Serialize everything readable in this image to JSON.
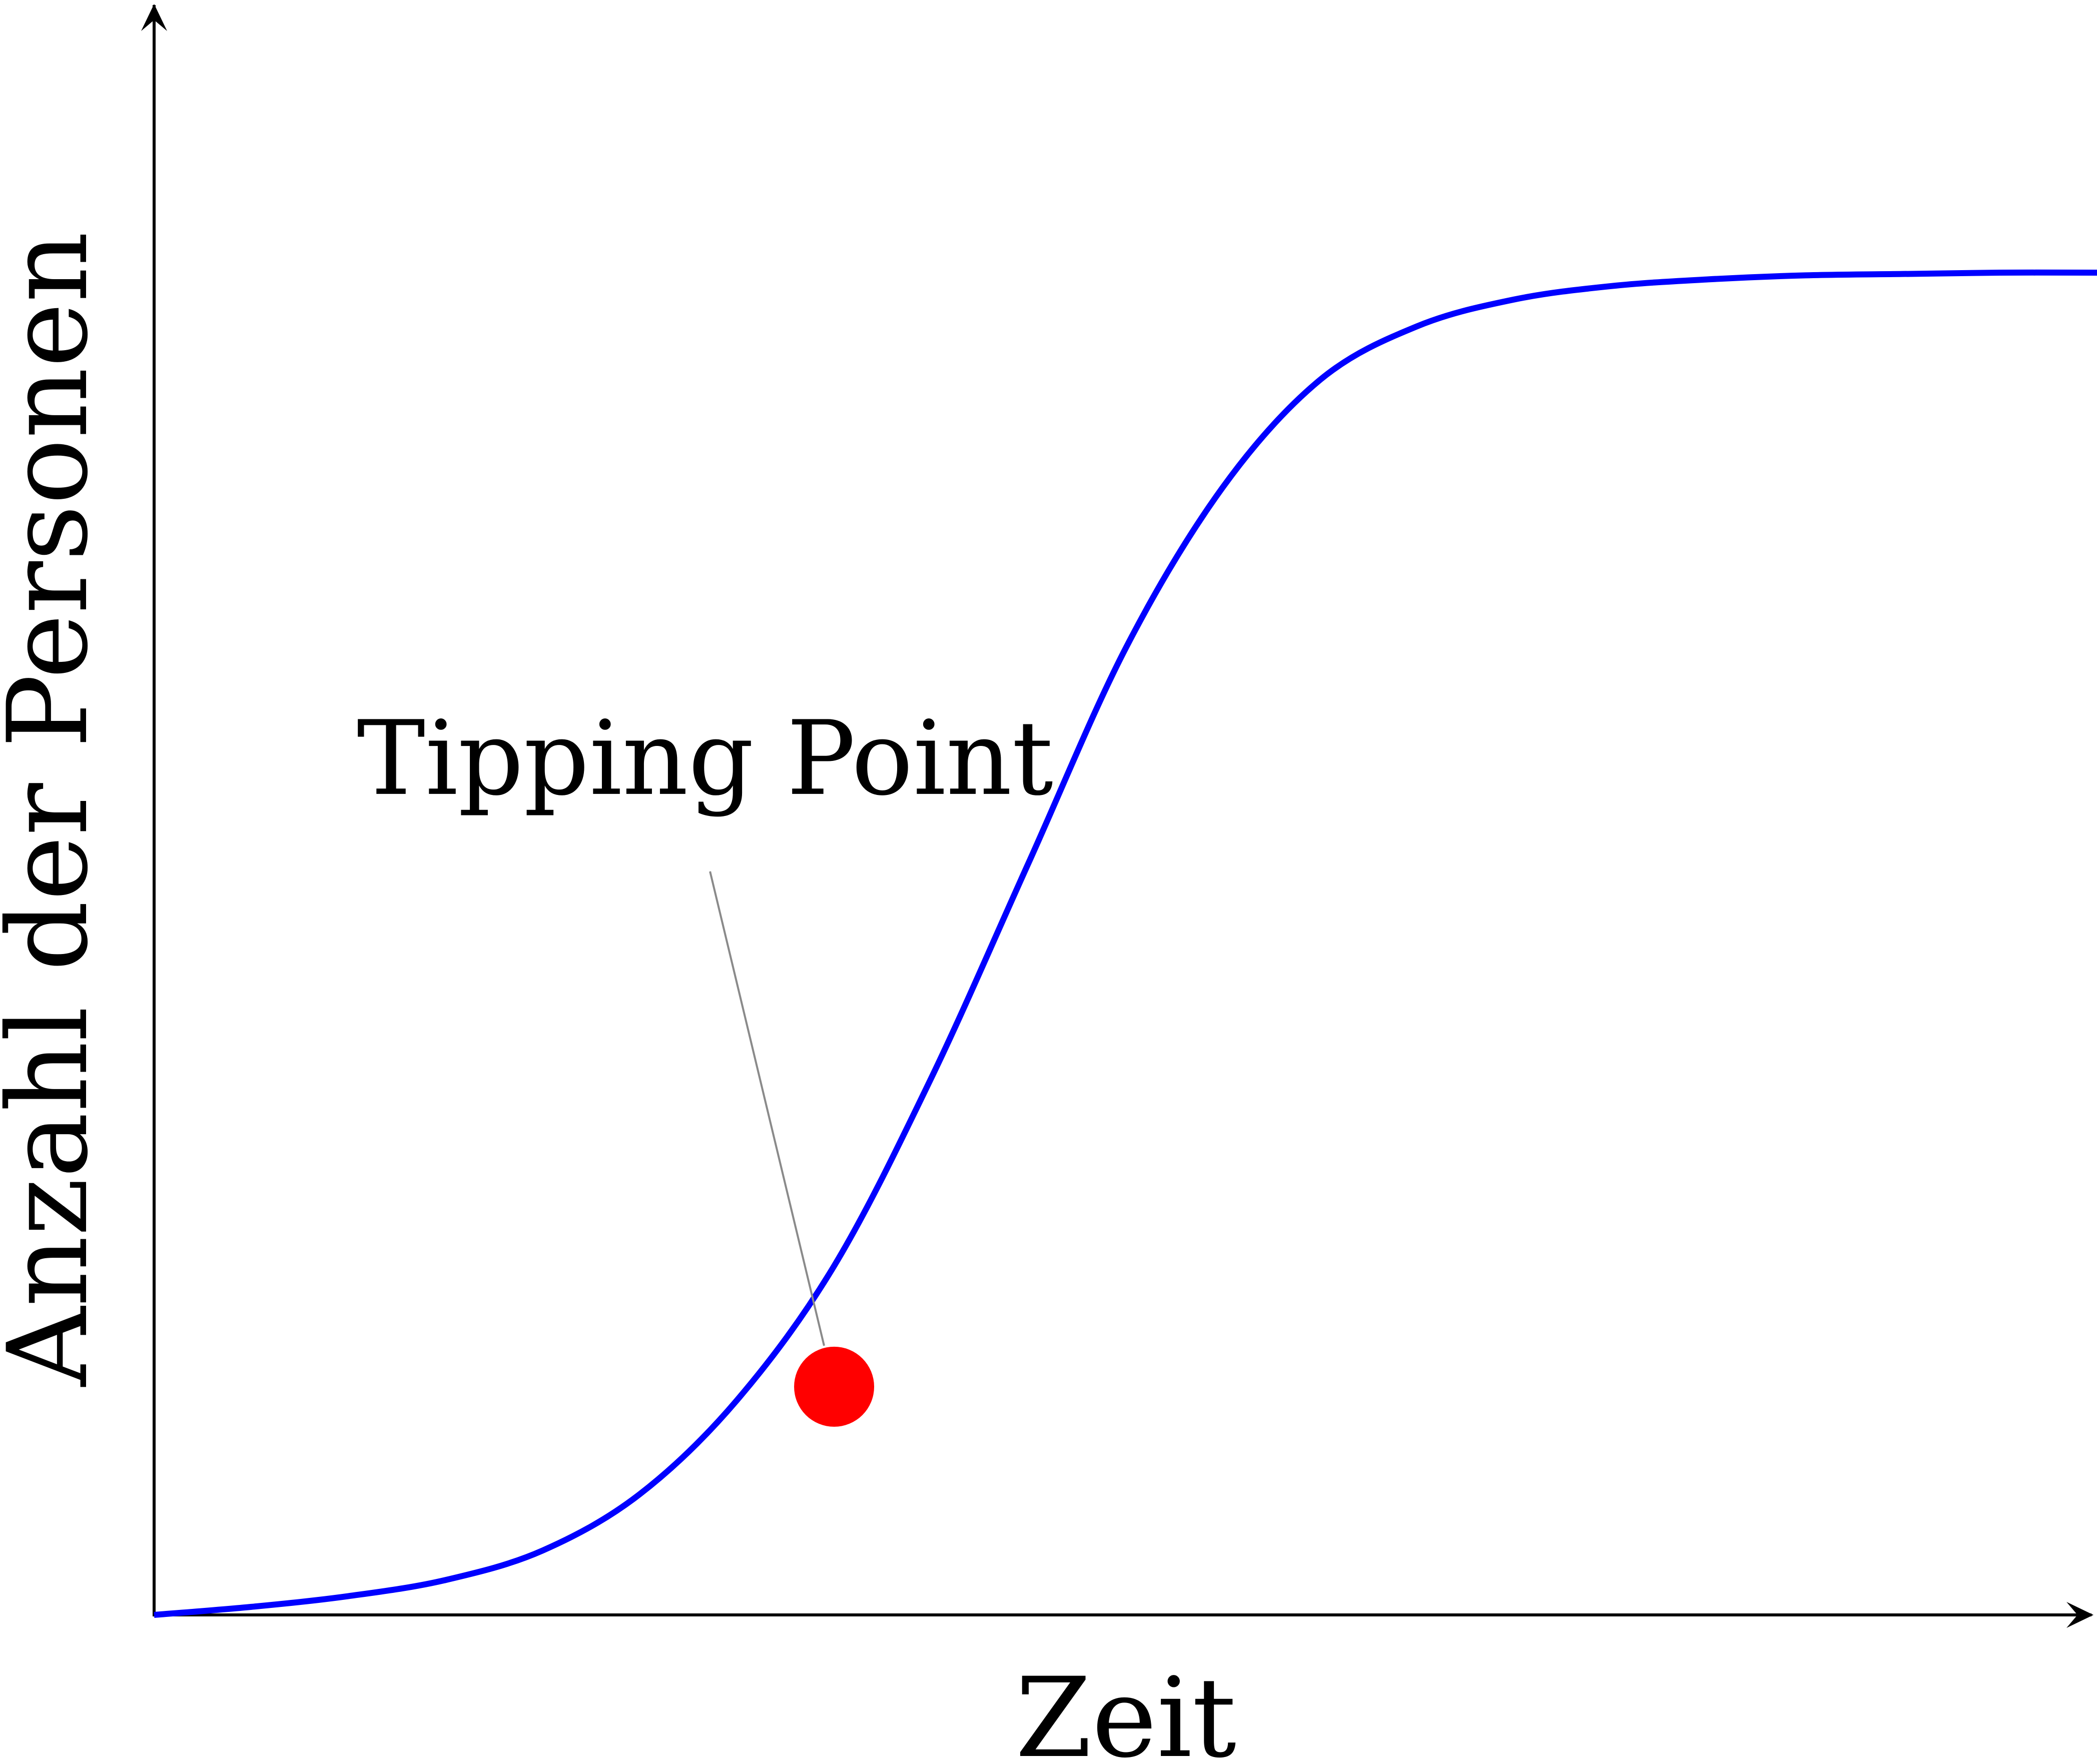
{
  "chart_data": {
    "type": "line",
    "title": "",
    "xlabel": "Zeit",
    "ylabel": "Anzahl der Personen",
    "xlim": [
      0,
      10
    ],
    "ylim": [
      0,
      1.2
    ],
    "grid": false,
    "legend": "none",
    "series": [
      {
        "color": "#0000ff",
        "x": [
          0,
          0.5,
          1,
          1.5,
          2,
          2.5,
          3,
          3.5,
          4,
          4.5,
          5,
          5.5,
          6,
          6.5,
          7,
          7.5,
          8,
          8.5,
          9,
          9.5,
          10
        ],
        "values": [
          0,
          0.006,
          0.014,
          0.026,
          0.048,
          0.09,
          0.16,
          0.26,
          0.4,
          0.56,
          0.72,
          0.84,
          0.92,
          0.96,
          0.98,
          0.99,
          0.995,
          0.998,
          0.999,
          1.0,
          1.0
        ]
      }
    ],
    "annotations": [
      {
        "text": "Tipping Point",
        "x": 3.5,
        "y": 0.17,
        "marker_color": "#ff0000"
      }
    ]
  }
}
